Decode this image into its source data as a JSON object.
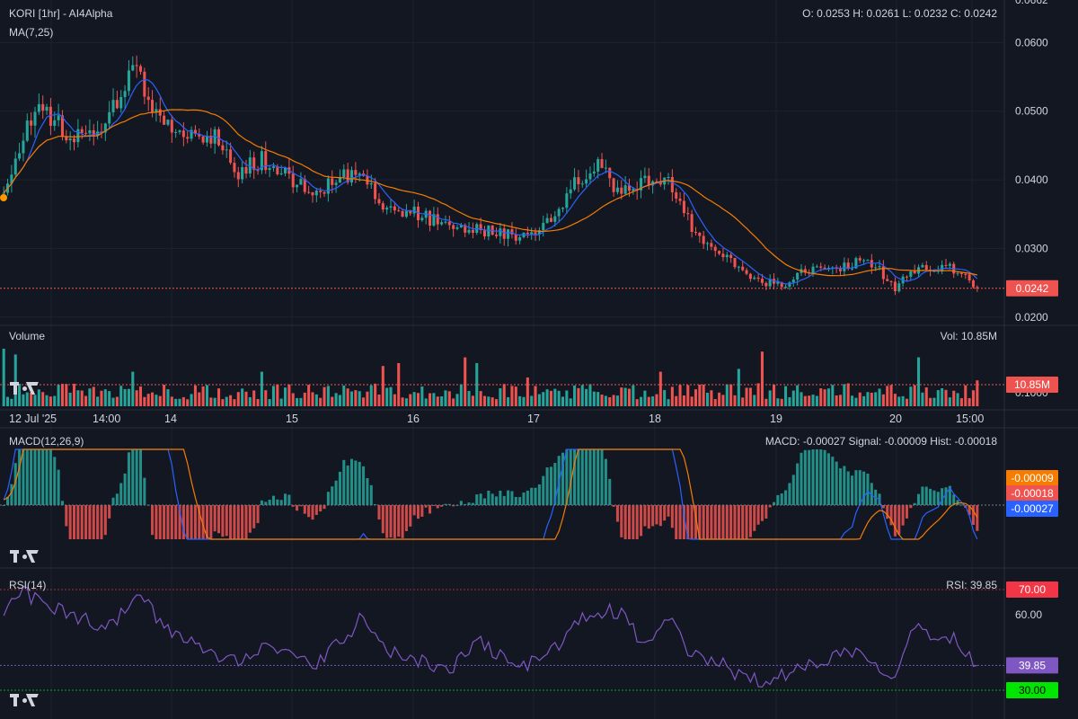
{
  "chart": {
    "title": "KORI [1hr] - AI4Alpha",
    "ohlc_text": "O: 0.0253 H: 0.0261 L: 0.0232 C: 0.0242",
    "ma_label": "MA(7,25)",
    "last_price": "0.0242"
  },
  "volume": {
    "label": "Volume",
    "value_text": "Vol: 10.85M",
    "last_tag": "10.85M"
  },
  "macd": {
    "label": "MACD(12,26,9)",
    "value_text": "MACD: -0.00027 Signal: -0.00009 Hist: -0.00018",
    "tag_signal": "-0.00009",
    "tag_hist": "-0.00018",
    "tag_macd": "-0.00027"
  },
  "rsi": {
    "label": "RSI(14)",
    "value_text": "RSI: 39.85",
    "tag_70": "70.00",
    "tag_60": "60.00",
    "tag_value": "39.85",
    "tag_30": "30.00"
  },
  "colors": {
    "background": "#131722",
    "up": "#26a69a",
    "down": "#ef5350",
    "ma_fast": "#2962ff",
    "ma_slow": "#f57c00",
    "rsi": "#7e57c2",
    "rsi_overbought": "#f23645",
    "rsi_oversold": "#00e600"
  },
  "icons": [
    "tradingview-logo-icon"
  ],
  "chart_data": [
    {
      "type": "candlestick",
      "title": "KORI [1hr] - AI4Alpha",
      "x_ticks": [
        "12 Jul '25",
        "14:00",
        "14",
        "15",
        "16",
        "17",
        "18",
        "19",
        "20",
        "15:00"
      ],
      "y_ticks": [
        "0.0200",
        "0.0300",
        "0.0400",
        "0.0500",
        "0.0600"
      ],
      "ylim": [
        0.0188,
        0.0662
      ],
      "anchors": [
        {
          "i": 0,
          "v": 0.038
        },
        {
          "i": 8,
          "v": 0.051
        },
        {
          "i": 16,
          "v": 0.047
        },
        {
          "i": 24,
          "v": 0.046
        },
        {
          "i": 30,
          "v": 0.053
        },
        {
          "i": 34,
          "v": 0.056
        },
        {
          "i": 40,
          "v": 0.049
        },
        {
          "i": 46,
          "v": 0.046
        },
        {
          "i": 54,
          "v": 0.046
        },
        {
          "i": 60,
          "v": 0.041
        },
        {
          "i": 66,
          "v": 0.043
        },
        {
          "i": 74,
          "v": 0.04
        },
        {
          "i": 80,
          "v": 0.038
        },
        {
          "i": 86,
          "v": 0.041
        },
        {
          "i": 92,
          "v": 0.04
        },
        {
          "i": 98,
          "v": 0.036
        },
        {
          "i": 106,
          "v": 0.035
        },
        {
          "i": 114,
          "v": 0.033
        },
        {
          "i": 120,
          "v": 0.033
        },
        {
          "i": 128,
          "v": 0.032
        },
        {
          "i": 134,
          "v": 0.032
        },
        {
          "i": 140,
          "v": 0.034
        },
        {
          "i": 146,
          "v": 0.04
        },
        {
          "i": 152,
          "v": 0.042
        },
        {
          "i": 158,
          "v": 0.038
        },
        {
          "i": 164,
          "v": 0.04
        },
        {
          "i": 170,
          "v": 0.04
        },
        {
          "i": 176,
          "v": 0.033
        },
        {
          "i": 182,
          "v": 0.03
        },
        {
          "i": 188,
          "v": 0.027
        },
        {
          "i": 194,
          "v": 0.025
        },
        {
          "i": 200,
          "v": 0.025
        },
        {
          "i": 206,
          "v": 0.027
        },
        {
          "i": 212,
          "v": 0.027
        },
        {
          "i": 218,
          "v": 0.028
        },
        {
          "i": 222,
          "v": 0.028
        },
        {
          "i": 228,
          "v": 0.024
        },
        {
          "i": 232,
          "v": 0.027
        },
        {
          "i": 238,
          "v": 0.0275
        },
        {
          "i": 244,
          "v": 0.027
        },
        {
          "i": 249,
          "v": 0.0242
        }
      ],
      "candles": 250
    },
    {
      "type": "bar",
      "title": "Volume",
      "note": "Vol: 10.85M",
      "peaks": [
        {
          "i": 0,
          "v": 1.0
        },
        {
          "i": 3,
          "v": 0.9
        },
        {
          "i": 33,
          "v": 0.6
        },
        {
          "i": 66,
          "v": 0.6
        },
        {
          "i": 97,
          "v": 0.7
        },
        {
          "i": 101,
          "v": 0.75
        },
        {
          "i": 118,
          "v": 0.85
        },
        {
          "i": 121,
          "v": 0.75
        },
        {
          "i": 134,
          "v": 0.5
        },
        {
          "i": 168,
          "v": 0.6
        },
        {
          "i": 188,
          "v": 0.65
        },
        {
          "i": 194,
          "v": 0.95
        },
        {
          "i": 234,
          "v": 0.85
        },
        {
          "i": 249,
          "v": 0.45
        }
      ]
    },
    {
      "type": "line",
      "title": "MACD(12,26,9)",
      "series": [
        {
          "name": "MACD",
          "last": -0.00027
        },
        {
          "name": "Signal",
          "last": -9e-05
        },
        {
          "name": "Hist",
          "last": -0.00018
        }
      ]
    },
    {
      "type": "line",
      "title": "RSI(14)",
      "levels": [
        70,
        60,
        30
      ],
      "last": 39.85,
      "anchors": [
        {
          "i": 0,
          "v": 62
        },
        {
          "i": 4,
          "v": 70
        },
        {
          "i": 10,
          "v": 64
        },
        {
          "i": 18,
          "v": 60
        },
        {
          "i": 26,
          "v": 54
        },
        {
          "i": 32,
          "v": 63
        },
        {
          "i": 36,
          "v": 67
        },
        {
          "i": 40,
          "v": 56
        },
        {
          "i": 46,
          "v": 50
        },
        {
          "i": 54,
          "v": 44
        },
        {
          "i": 60,
          "v": 42
        },
        {
          "i": 66,
          "v": 48
        },
        {
          "i": 72,
          "v": 44
        },
        {
          "i": 80,
          "v": 40
        },
        {
          "i": 88,
          "v": 52
        },
        {
          "i": 92,
          "v": 60
        },
        {
          "i": 98,
          "v": 45
        },
        {
          "i": 106,
          "v": 42
        },
        {
          "i": 114,
          "v": 38
        },
        {
          "i": 122,
          "v": 50
        },
        {
          "i": 128,
          "v": 42
        },
        {
          "i": 134,
          "v": 40
        },
        {
          "i": 142,
          "v": 48
        },
        {
          "i": 148,
          "v": 58
        },
        {
          "i": 154,
          "v": 62
        },
        {
          "i": 158,
          "v": 60
        },
        {
          "i": 164,
          "v": 48
        },
        {
          "i": 170,
          "v": 58
        },
        {
          "i": 176,
          "v": 44
        },
        {
          "i": 182,
          "v": 42
        },
        {
          "i": 188,
          "v": 36
        },
        {
          "i": 194,
          "v": 34
        },
        {
          "i": 200,
          "v": 36
        },
        {
          "i": 206,
          "v": 40
        },
        {
          "i": 212,
          "v": 44
        },
        {
          "i": 218,
          "v": 46
        },
        {
          "i": 224,
          "v": 40
        },
        {
          "i": 228,
          "v": 36
        },
        {
          "i": 232,
          "v": 55
        },
        {
          "i": 238,
          "v": 52
        },
        {
          "i": 244,
          "v": 50
        },
        {
          "i": 249,
          "v": 39.85
        }
      ]
    }
  ]
}
